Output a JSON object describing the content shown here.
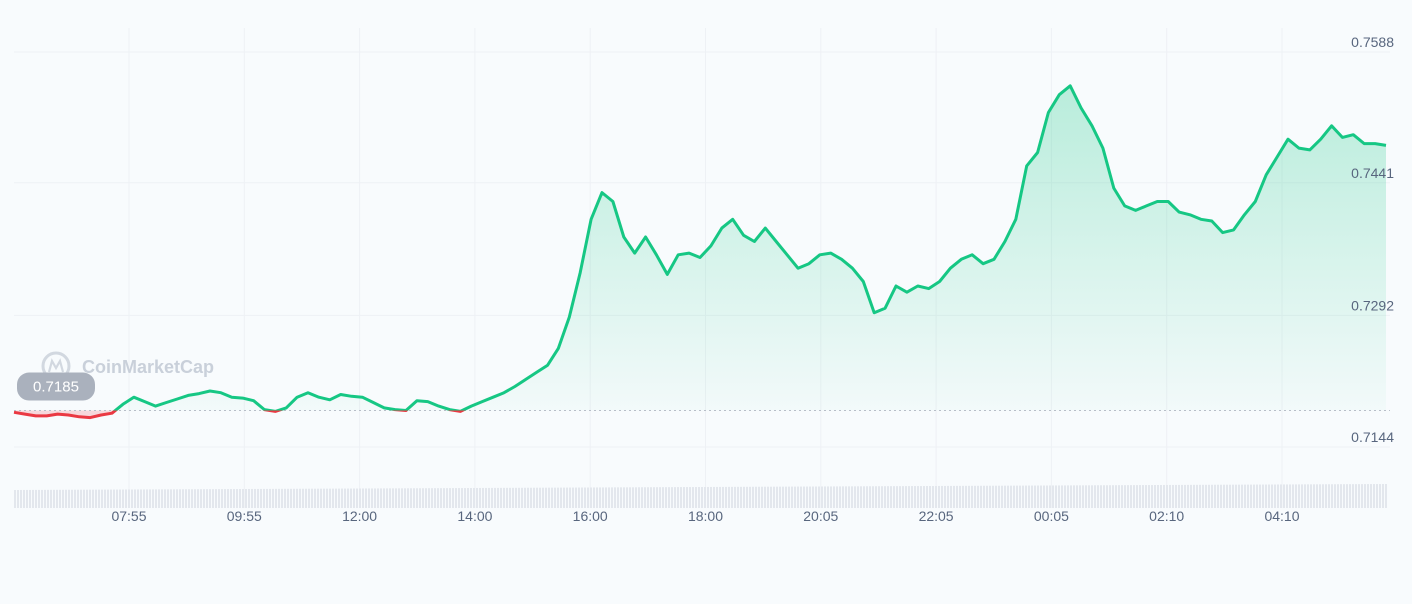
{
  "chart_data": {
    "type": "area",
    "title": "",
    "xlabel": "",
    "ylabel": "",
    "grid": true,
    "watermark": "CoinMarketCap",
    "x_ticks": [
      "07:55",
      "09:55",
      "12:00",
      "14:00",
      "16:00",
      "18:00",
      "20:05",
      "22:05",
      "00:05",
      "02:10",
      "04:10"
    ],
    "y_ticks": [
      0.7588,
      0.7441,
      0.7292,
      0.7144
    ],
    "y_tick_labels": [
      "0.7588",
      "0.7441",
      "0.7292",
      "0.7144"
    ],
    "ylim": [
      0.7144,
      0.7588
    ],
    "baseline": {
      "value": 0.7185,
      "label": "0.7185"
    },
    "colors": {
      "up": "#16c784",
      "down": "#ea3943",
      "baseline_pill": "#aab1bd"
    },
    "series": [
      {
        "values": [
          0.7183,
          0.7181,
          0.7179,
          0.7179,
          0.7181,
          0.718,
          0.7178,
          0.7177,
          0.718,
          0.7182,
          0.7192,
          0.72,
          0.7195,
          0.719,
          0.7194,
          0.7198,
          0.7202,
          0.7204,
          0.7207,
          0.7205,
          0.72,
          0.7199,
          0.7196,
          0.7186,
          0.7184,
          0.7188,
          0.72,
          0.7205,
          0.72,
          0.7197,
          0.7203,
          0.7201,
          0.72,
          0.7194,
          0.7188,
          0.7186,
          0.7185,
          0.7196,
          0.7195,
          0.719,
          0.7186,
          0.7184,
          0.719,
          0.7195,
          0.72,
          0.7205,
          0.7212,
          0.722,
          0.7228,
          0.7236,
          0.7255,
          0.729,
          0.734,
          0.74,
          0.743,
          0.742,
          0.738,
          0.7362,
          0.738,
          0.736,
          0.7338,
          0.736,
          0.7362,
          0.7357,
          0.737,
          0.739,
          0.74,
          0.7382,
          0.7375,
          0.739,
          0.7375,
          0.736,
          0.7345,
          0.735,
          0.736,
          0.7362,
          0.7355,
          0.7345,
          0.733,
          0.7295,
          0.73,
          0.7325,
          0.7318,
          0.7325,
          0.7322,
          0.733,
          0.7345,
          0.7355,
          0.736,
          0.735,
          0.7355,
          0.7375,
          0.74,
          0.746,
          0.7475,
          0.752,
          0.754,
          0.755,
          0.7525,
          0.7505,
          0.748,
          0.7435,
          0.7415,
          0.741,
          0.7415,
          0.742,
          0.742,
          0.7408,
          0.7405,
          0.74,
          0.7398,
          0.7385,
          0.7388,
          0.7405,
          0.742,
          0.745,
          0.747,
          0.749,
          0.748,
          0.7478,
          0.749,
          0.7505,
          0.7492,
          0.7495,
          0.7485,
          0.7485,
          0.7483
        ]
      }
    ]
  }
}
